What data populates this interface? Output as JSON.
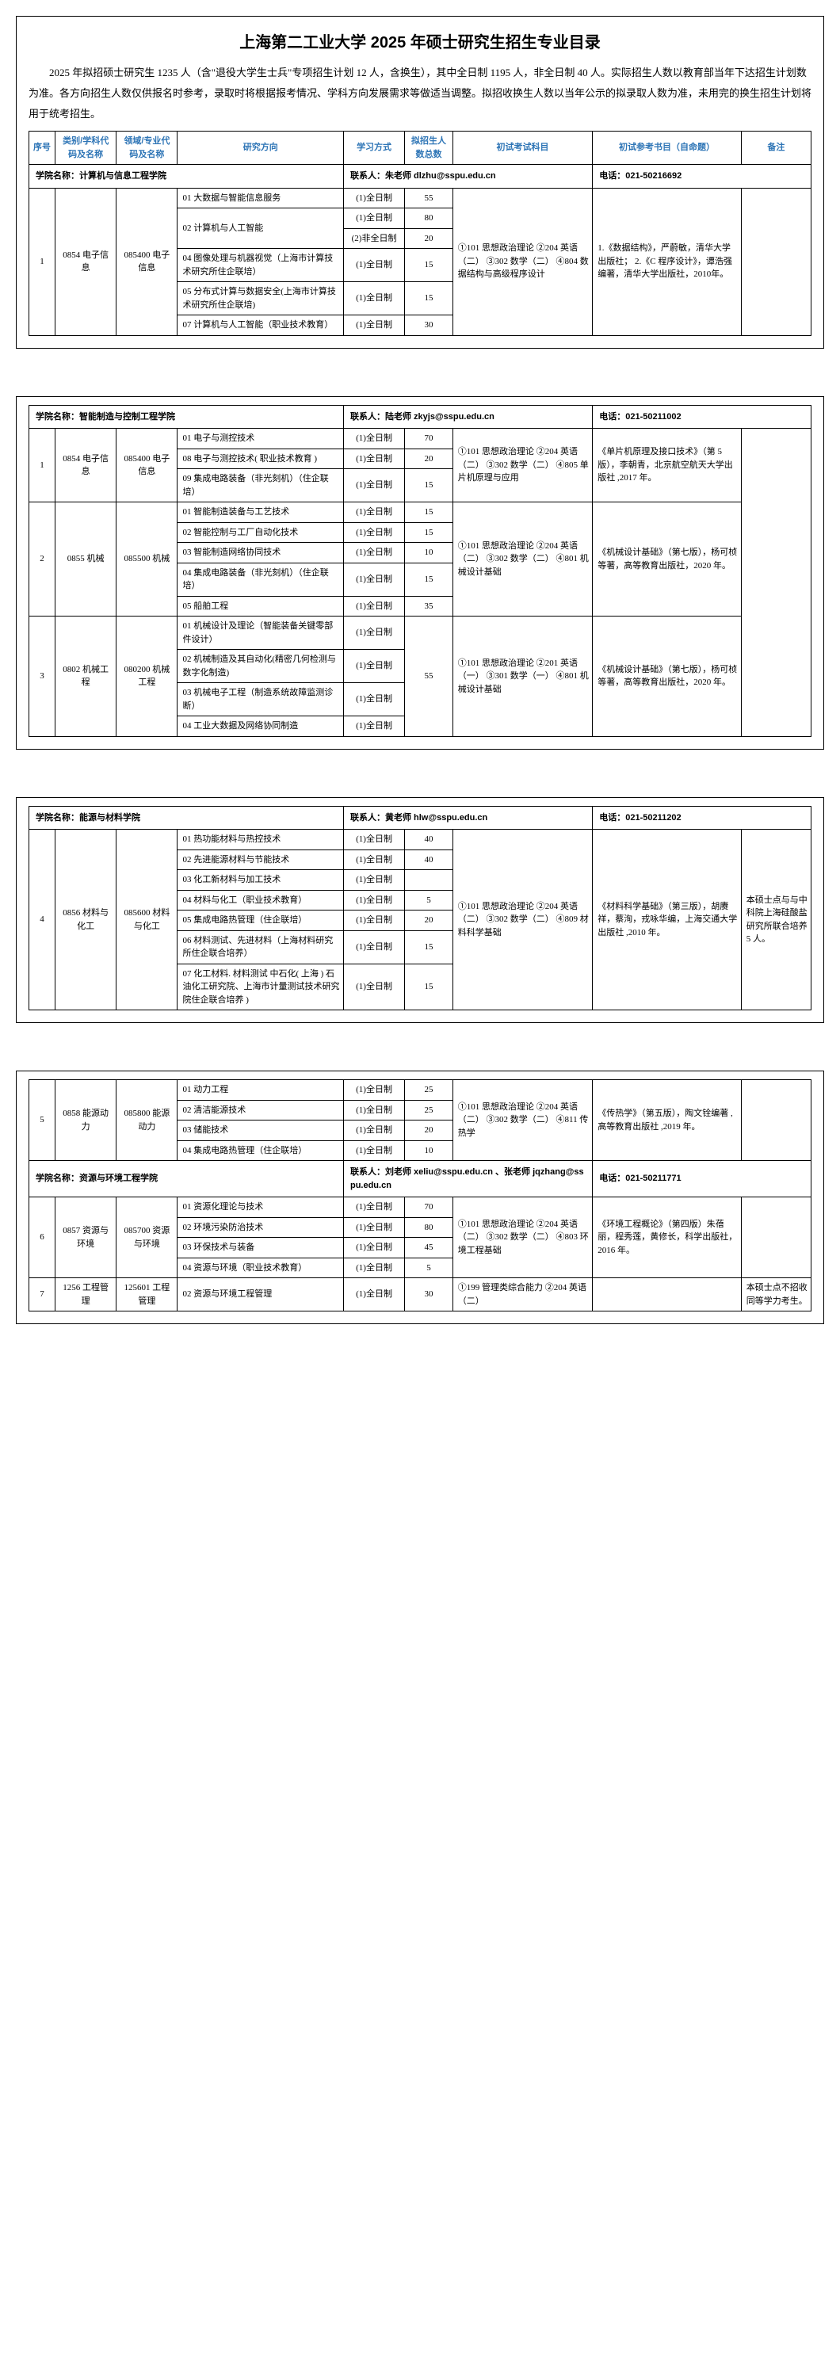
{
  "title": "上海第二工业大学 2025 年硕士研究生招生专业目录",
  "intro": "2025 年拟招硕士研究生 1235 人（含\"退役大学生士兵\"专项招生计划 12 人，含换生），其中全日制 1195 人，非全日制 40 人。实际招生人数以教育部当年下达招生计划数为准。各方向招生人数仅供报名时参考，录取时将根据报考情况、学科方向发展需求等做适当调整。拟招收换生人数以当年公示的拟录取人数为准，未用完的换生招生计划将用于统考招生。",
  "headers": {
    "seq": "序号",
    "cat": "类别/学科代码及名称",
    "field": "领域/专业代码及名称",
    "dir": "研究方向",
    "mode": "学习方式",
    "num": "拟招生人数总数",
    "exam": "初试考试科目",
    "book": "初试参考书目（自命题）",
    "note": "备注"
  },
  "schools": [
    {
      "name": "学院名称：计算机与信息工程学院",
      "contact": "联系人：朱老师  dlzhu@sspu.edu.cn",
      "phone": "电话：021-50216692"
    },
    {
      "name": "学院名称：智能制造与控制工程学院",
      "contact": "联系人：陆老师  zkyjs@sspu.edu.cn",
      "phone": "电话：021-50211002"
    },
    {
      "name": "学院名称：能源与材料学院",
      "contact": "联系人：黄老师  hlw@sspu.edu.cn",
      "phone": "电话：021-50211202"
    },
    {
      "name": "学院名称：资源与环境工程学院",
      "contact": "联系人：刘老师  xeliu@sspu.edu.cn 、张老师  jqzhang@sspu.edu.cn",
      "phone": "电话：021-50211771"
    }
  ],
  "rows": {
    "r1": {
      "seq": "1",
      "cat": "0854\n电子信息",
      "field": "085400\n电子信息",
      "dirs": [
        {
          "d": "01 大数据与智能信息服务",
          "m": "(1)全日制",
          "n": "55"
        },
        {
          "d": "02 计算机与人工智能",
          "m": "(1)全日制",
          "n": "80"
        },
        {
          "d": "",
          "m": "(2)非全日制",
          "n": "20"
        },
        {
          "d": "04 图像处理与机器视觉（上海市计算技术研究所住企联培）",
          "m": "(1)全日制",
          "n": "15"
        },
        {
          "d": "05 分布式计算与数据安全(上海市计算技术研究所住企联培)",
          "m": "(1)全日制",
          "n": "15"
        },
        {
          "d": "07 计算机与人工智能（职业技术教育）",
          "m": "(1)全日制",
          "n": "30"
        }
      ],
      "exam": "①101 思想政治理论\n②204 英语（二）\n③302 数学（二）\n④804 数据结构与高级程序设计",
      "book": "1.《数据结构》，严蔚敏，清华大学出版社；\n2.《C 程序设计》，谭浩强编著，清华大学出版社，2010年。",
      "note": ""
    },
    "r2a": {
      "seq": "1",
      "cat": "0854 电子信息",
      "field": "085400 电子信息",
      "dirs": [
        {
          "d": "01 电子与测控技术",
          "m": "(1)全日制",
          "n": "70"
        },
        {
          "d": "08 电子与测控技术( 职业技术教育 )",
          "m": "(1)全日制",
          "n": "20"
        },
        {
          "d": "09 集成电路装备（非光刻机）（住企联培）",
          "m": "(1)全日制",
          "n": "15"
        }
      ],
      "exam": "①101 思想政治理论\n②204 英语（二）\n③302 数学（二）\n④805 单片机原理与应用",
      "book": "《单片机原理及接口技术》（第 5 版），李朝青，北京航空航天大学出版社 ,2017 年。"
    },
    "r2b": {
      "seq": "2",
      "cat": "0855 机械",
      "field": "085500 机械",
      "dirs": [
        {
          "d": "01 智能制造装备与工艺技术",
          "m": "(1)全日制",
          "n": "15"
        },
        {
          "d": "02 智能控制与工厂自动化技术",
          "m": "(1)全日制",
          "n": "15"
        },
        {
          "d": "03 智能制造网络协同技术",
          "m": "(1)全日制",
          "n": "10"
        },
        {
          "d": "04 集成电路装备（非光刻机）（住企联培）",
          "m": "(1)全日制",
          "n": "15"
        },
        {
          "d": "05 船舶工程",
          "m": "(1)全日制",
          "n": "35"
        }
      ],
      "exam": "①101 思想政治理论\n②204 英语（二）\n③302 数学（二）\n④801 机械设计基础",
      "book": "《机械设计基础》（第七版），杨可桢等著，高等教育出版社，2020 年。"
    },
    "r2c": {
      "seq": "3",
      "cat": "0802 机械工程",
      "field": "080200 机械工程",
      "dirs": [
        {
          "d": "01 机械设计及理论（智能装备关键零部件设计）",
          "m": "(1)全日制"
        },
        {
          "d": "02 机械制造及其自动化(精密几何检测与数字化制造)",
          "m": "(1)全日制"
        },
        {
          "d": "03 机械电子工程（制造系统故障监测诊断）",
          "m": "(1)全日制"
        },
        {
          "d": "04 工业大数据及网络协同制造",
          "m": "(1)全日制"
        }
      ],
      "num": "55",
      "exam": "①101 思想政治理论\n②201 英语（一）\n③301 数学（一）\n④801 机械设计基础",
      "book": "《机械设计基础》（第七版），杨可桢等著，高等教育出版社，2020 年。"
    },
    "r4": {
      "seq": "4",
      "cat": "0856\n材料与化工",
      "field": "085600\n材料与化工",
      "dirs": [
        {
          "d": "01 热功能材料与热控技术",
          "m": "(1)全日制",
          "n": "40"
        },
        {
          "d": "02 先进能源材料与节能技术",
          "m": "(1)全日制",
          "n": "40"
        },
        {
          "d": "03 化工新材料与加工技术",
          "m": "(1)全日制",
          "n": ""
        },
        {
          "d": "04 材料与化工（职业技术教育）",
          "m": "(1)全日制",
          "n": "5"
        },
        {
          "d": "05 集成电路热管理（住企联培）",
          "m": "(1)全日制",
          "n": "20"
        },
        {
          "d": "06 材料测试、先进材料（上海材料研究所住企联合培养）",
          "m": "(1)全日制",
          "n": "15"
        },
        {
          "d": "07 化工材料. 材料测试 中石化( 上海 ) 石油化工研究院、上海市计量测试技术研究院住企联合培养 )",
          "m": "(1)全日制",
          "n": "15"
        }
      ],
      "exam": "①101 思想政治理论\n②204 英语（二）\n③302 数学（二）\n④809 材料科学基础",
      "book": "《材料科学基础》（第三版），胡赓祥，蔡洵，戎咏华编，上海交通大学出版社 ,2010 年。",
      "note": "本硕士点与与中科院上海硅酸盐研究所联合培养 5 人。"
    },
    "r5": {
      "seq": "5",
      "cat": "0858\n能源动力",
      "field": "085800\n能源动力",
      "dirs": [
        {
          "d": "01 动力工程",
          "m": "(1)全日制",
          "n": "25"
        },
        {
          "d": "02 清洁能源技术",
          "m": "(1)全日制",
          "n": "25"
        },
        {
          "d": "03 储能技术",
          "m": "(1)全日制",
          "n": "20"
        },
        {
          "d": "04 集成电路热管理（住企联培）",
          "m": "(1)全日制",
          "n": "10"
        }
      ],
      "exam": "①101 思想政治理论\n②204 英语（二）\n③302 数学（二）\n④811 传热学",
      "book": "《传热学》（第五版），陶文铨编著 ,高等教育出版社 ,2019 年。"
    },
    "r6": {
      "seq": "6",
      "cat": "0857\n资源与环境",
      "field": "085700\n资源与环境",
      "dirs": [
        {
          "d": "01 资源化理论与技术",
          "m": "(1)全日制",
          "n": "70"
        },
        {
          "d": "02 环境污染防治技术",
          "m": "(1)全日制",
          "n": "80"
        },
        {
          "d": "03 环保技术与装备",
          "m": "(1)全日制",
          "n": "45"
        },
        {
          "d": "04 资源与环境（职业技术教育）",
          "m": "(1)全日制",
          "n": "5"
        }
      ],
      "exam": "①101 思想政治理论\n②204 英语（二）\n③302 数学（二）\n④803 环境工程基础",
      "book": "《环境工程概论》（第四版）朱蓓丽，程秀莲，黄修长，科学出版社，2016 年。"
    },
    "r7": {
      "seq": "7",
      "cat": "1256\n工程管理",
      "field": "125601\n工程管理",
      "dirs": [
        {
          "d": "02 资源与环境工程管理",
          "m": "(1)全日制",
          "n": "30"
        }
      ],
      "exam": "①199 管理类综合能力\n②204 英语（二）",
      "book": "",
      "note": "本硕士点不招收同等学力考生。"
    }
  }
}
